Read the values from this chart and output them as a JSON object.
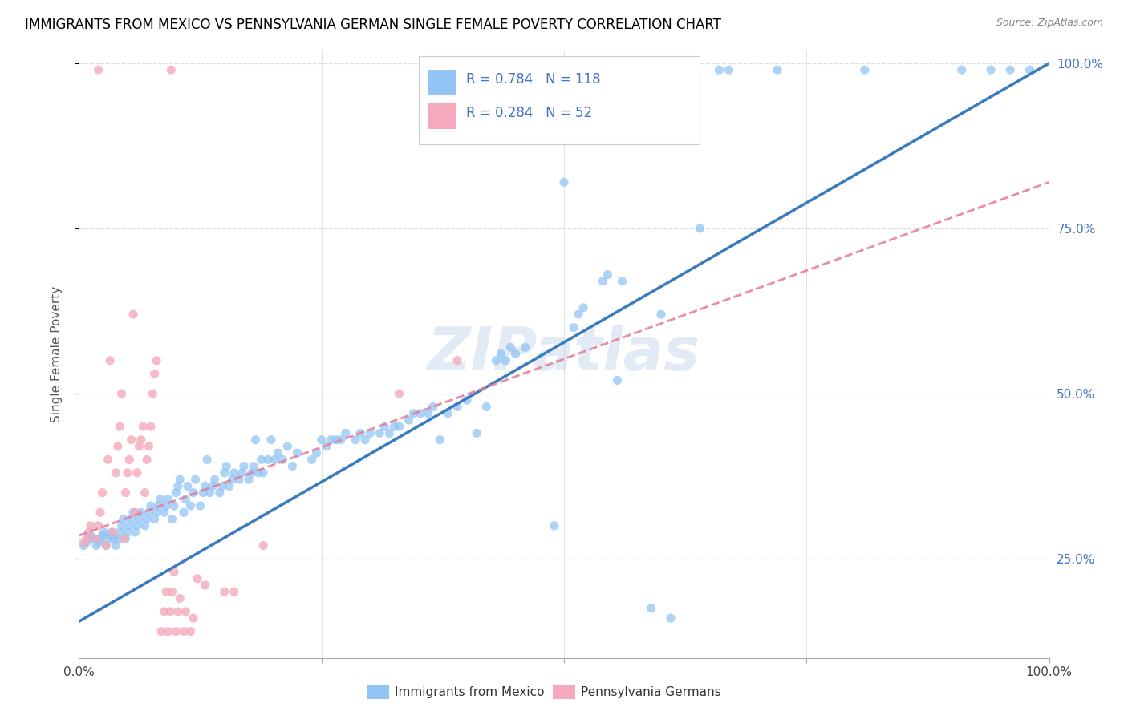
{
  "title": "IMMIGRANTS FROM MEXICO VS PENNSYLVANIA GERMAN SINGLE FEMALE POVERTY CORRELATION CHART",
  "source": "Source: ZipAtlas.com",
  "ylabel": "Single Female Poverty",
  "legend_label_blue": "Immigrants from Mexico",
  "legend_label_pink": "Pennsylvania Germans",
  "watermark": "ZIPatlas",
  "blue_color": "#92c5f5",
  "pink_color": "#f4aabc",
  "blue_line_color": "#3a7abf",
  "pink_line_color": "#e87898",
  "blue_scatter": [
    [
      0.005,
      0.27
    ],
    [
      0.008,
      0.275
    ],
    [
      0.01,
      0.28
    ],
    [
      0.012,
      0.285
    ],
    [
      0.015,
      0.28
    ],
    [
      0.018,
      0.27
    ],
    [
      0.02,
      0.275
    ],
    [
      0.022,
      0.28
    ],
    [
      0.024,
      0.285
    ],
    [
      0.026,
      0.29
    ],
    [
      0.028,
      0.27
    ],
    [
      0.03,
      0.28
    ],
    [
      0.032,
      0.285
    ],
    [
      0.034,
      0.29
    ],
    [
      0.036,
      0.28
    ],
    [
      0.038,
      0.27
    ],
    [
      0.04,
      0.28
    ],
    [
      0.042,
      0.29
    ],
    [
      0.044,
      0.3
    ],
    [
      0.046,
      0.31
    ],
    [
      0.048,
      0.28
    ],
    [
      0.05,
      0.29
    ],
    [
      0.052,
      0.3
    ],
    [
      0.054,
      0.31
    ],
    [
      0.056,
      0.32
    ],
    [
      0.058,
      0.29
    ],
    [
      0.06,
      0.3
    ],
    [
      0.062,
      0.31
    ],
    [
      0.064,
      0.32
    ],
    [
      0.068,
      0.3
    ],
    [
      0.07,
      0.31
    ],
    [
      0.072,
      0.32
    ],
    [
      0.074,
      0.33
    ],
    [
      0.078,
      0.31
    ],
    [
      0.08,
      0.32
    ],
    [
      0.082,
      0.33
    ],
    [
      0.084,
      0.34
    ],
    [
      0.088,
      0.32
    ],
    [
      0.09,
      0.33
    ],
    [
      0.092,
      0.34
    ],
    [
      0.096,
      0.31
    ],
    [
      0.098,
      0.33
    ],
    [
      0.1,
      0.35
    ],
    [
      0.102,
      0.36
    ],
    [
      0.104,
      0.37
    ],
    [
      0.108,
      0.32
    ],
    [
      0.11,
      0.34
    ],
    [
      0.112,
      0.36
    ],
    [
      0.115,
      0.33
    ],
    [
      0.118,
      0.35
    ],
    [
      0.12,
      0.37
    ],
    [
      0.125,
      0.33
    ],
    [
      0.128,
      0.35
    ],
    [
      0.13,
      0.36
    ],
    [
      0.132,
      0.4
    ],
    [
      0.135,
      0.35
    ],
    [
      0.138,
      0.36
    ],
    [
      0.14,
      0.37
    ],
    [
      0.145,
      0.35
    ],
    [
      0.148,
      0.36
    ],
    [
      0.15,
      0.38
    ],
    [
      0.152,
      0.39
    ],
    [
      0.155,
      0.36
    ],
    [
      0.158,
      0.37
    ],
    [
      0.16,
      0.38
    ],
    [
      0.165,
      0.37
    ],
    [
      0.168,
      0.38
    ],
    [
      0.17,
      0.39
    ],
    [
      0.175,
      0.37
    ],
    [
      0.178,
      0.38
    ],
    [
      0.18,
      0.39
    ],
    [
      0.182,
      0.43
    ],
    [
      0.185,
      0.38
    ],
    [
      0.188,
      0.4
    ],
    [
      0.19,
      0.38
    ],
    [
      0.195,
      0.4
    ],
    [
      0.198,
      0.43
    ],
    [
      0.202,
      0.4
    ],
    [
      0.205,
      0.41
    ],
    [
      0.21,
      0.4
    ],
    [
      0.215,
      0.42
    ],
    [
      0.22,
      0.39
    ],
    [
      0.225,
      0.41
    ],
    [
      0.24,
      0.4
    ],
    [
      0.245,
      0.41
    ],
    [
      0.25,
      0.43
    ],
    [
      0.255,
      0.42
    ],
    [
      0.26,
      0.43
    ],
    [
      0.265,
      0.43
    ],
    [
      0.27,
      0.43
    ],
    [
      0.275,
      0.44
    ],
    [
      0.285,
      0.43
    ],
    [
      0.29,
      0.44
    ],
    [
      0.295,
      0.43
    ],
    [
      0.3,
      0.44
    ],
    [
      0.31,
      0.44
    ],
    [
      0.315,
      0.45
    ],
    [
      0.32,
      0.44
    ],
    [
      0.325,
      0.45
    ],
    [
      0.33,
      0.45
    ],
    [
      0.34,
      0.46
    ],
    [
      0.345,
      0.47
    ],
    [
      0.352,
      0.47
    ],
    [
      0.36,
      0.47
    ],
    [
      0.365,
      0.48
    ],
    [
      0.372,
      0.43
    ],
    [
      0.38,
      0.47
    ],
    [
      0.39,
      0.48
    ],
    [
      0.4,
      0.49
    ],
    [
      0.41,
      0.44
    ],
    [
      0.42,
      0.48
    ],
    [
      0.43,
      0.55
    ],
    [
      0.435,
      0.56
    ],
    [
      0.44,
      0.55
    ],
    [
      0.445,
      0.57
    ],
    [
      0.45,
      0.56
    ],
    [
      0.46,
      0.57
    ],
    [
      0.49,
      0.3
    ],
    [
      0.51,
      0.6
    ],
    [
      0.515,
      0.62
    ],
    [
      0.52,
      0.63
    ],
    [
      0.54,
      0.67
    ],
    [
      0.545,
      0.68
    ],
    [
      0.555,
      0.52
    ],
    [
      0.56,
      0.67
    ],
    [
      0.59,
      0.175
    ],
    [
      0.6,
      0.62
    ],
    [
      0.61,
      0.16
    ],
    [
      0.64,
      0.75
    ],
    [
      0.66,
      0.99
    ],
    [
      0.67,
      0.99
    ],
    [
      0.72,
      0.99
    ],
    [
      0.81,
      0.99
    ],
    [
      0.91,
      0.99
    ],
    [
      0.94,
      0.99
    ],
    [
      0.96,
      0.99
    ],
    [
      0.98,
      0.99
    ],
    [
      0.5,
      0.82
    ]
  ],
  "pink_scatter": [
    [
      0.005,
      0.275
    ],
    [
      0.008,
      0.28
    ],
    [
      0.01,
      0.29
    ],
    [
      0.012,
      0.3
    ],
    [
      0.018,
      0.28
    ],
    [
      0.02,
      0.3
    ],
    [
      0.022,
      0.32
    ],
    [
      0.024,
      0.35
    ],
    [
      0.028,
      0.27
    ],
    [
      0.03,
      0.4
    ],
    [
      0.032,
      0.55
    ],
    [
      0.035,
      0.29
    ],
    [
      0.038,
      0.38
    ],
    [
      0.04,
      0.42
    ],
    [
      0.042,
      0.45
    ],
    [
      0.044,
      0.5
    ],
    [
      0.046,
      0.28
    ],
    [
      0.048,
      0.35
    ],
    [
      0.05,
      0.38
    ],
    [
      0.052,
      0.4
    ],
    [
      0.054,
      0.43
    ],
    [
      0.056,
      0.62
    ],
    [
      0.058,
      0.32
    ],
    [
      0.06,
      0.38
    ],
    [
      0.062,
      0.42
    ],
    [
      0.064,
      0.43
    ],
    [
      0.066,
      0.45
    ],
    [
      0.068,
      0.35
    ],
    [
      0.07,
      0.4
    ],
    [
      0.072,
      0.42
    ],
    [
      0.074,
      0.45
    ],
    [
      0.076,
      0.5
    ],
    [
      0.078,
      0.53
    ],
    [
      0.08,
      0.55
    ],
    [
      0.085,
      0.14
    ],
    [
      0.088,
      0.17
    ],
    [
      0.09,
      0.2
    ],
    [
      0.092,
      0.14
    ],
    [
      0.094,
      0.17
    ],
    [
      0.096,
      0.2
    ],
    [
      0.098,
      0.23
    ],
    [
      0.1,
      0.14
    ],
    [
      0.102,
      0.17
    ],
    [
      0.104,
      0.19
    ],
    [
      0.108,
      0.14
    ],
    [
      0.11,
      0.17
    ],
    [
      0.115,
      0.14
    ],
    [
      0.118,
      0.16
    ],
    [
      0.122,
      0.22
    ],
    [
      0.13,
      0.21
    ],
    [
      0.15,
      0.2
    ],
    [
      0.16,
      0.2
    ],
    [
      0.02,
      0.99
    ],
    [
      0.095,
      0.99
    ],
    [
      0.19,
      0.27
    ],
    [
      0.33,
      0.5
    ],
    [
      0.39,
      0.55
    ]
  ],
  "blue_line": [
    [
      0.0,
      0.155
    ],
    [
      1.0,
      1.0
    ]
  ],
  "pink_line": [
    [
      0.0,
      0.285
    ],
    [
      1.0,
      0.82
    ]
  ],
  "ylim": [
    0.1,
    1.02
  ],
  "xlim": [
    0.0,
    1.0
  ],
  "y_ticks": [
    0.25,
    0.5,
    0.75,
    1.0
  ],
  "y_tick_labels": [
    "25.0%",
    "50.0%",
    "75.0%",
    "100.0%"
  ],
  "x_ticks": [
    0.0,
    0.25,
    0.5,
    0.75,
    1.0
  ],
  "x_tick_labels_show": [
    "0.0%",
    "",
    "",
    "",
    "100.0%"
  ],
  "legend_R_blue": "R = 0.784",
  "legend_N_blue": "N = 118",
  "legend_R_pink": "R = 0.284",
  "legend_N_pink": "N = 52",
  "title_fontsize": 12,
  "source_fontsize": 9,
  "tick_fontsize": 11,
  "ylabel_fontsize": 11,
  "grid_color": "#dddddd",
  "text_color_axis": "#4472c4"
}
